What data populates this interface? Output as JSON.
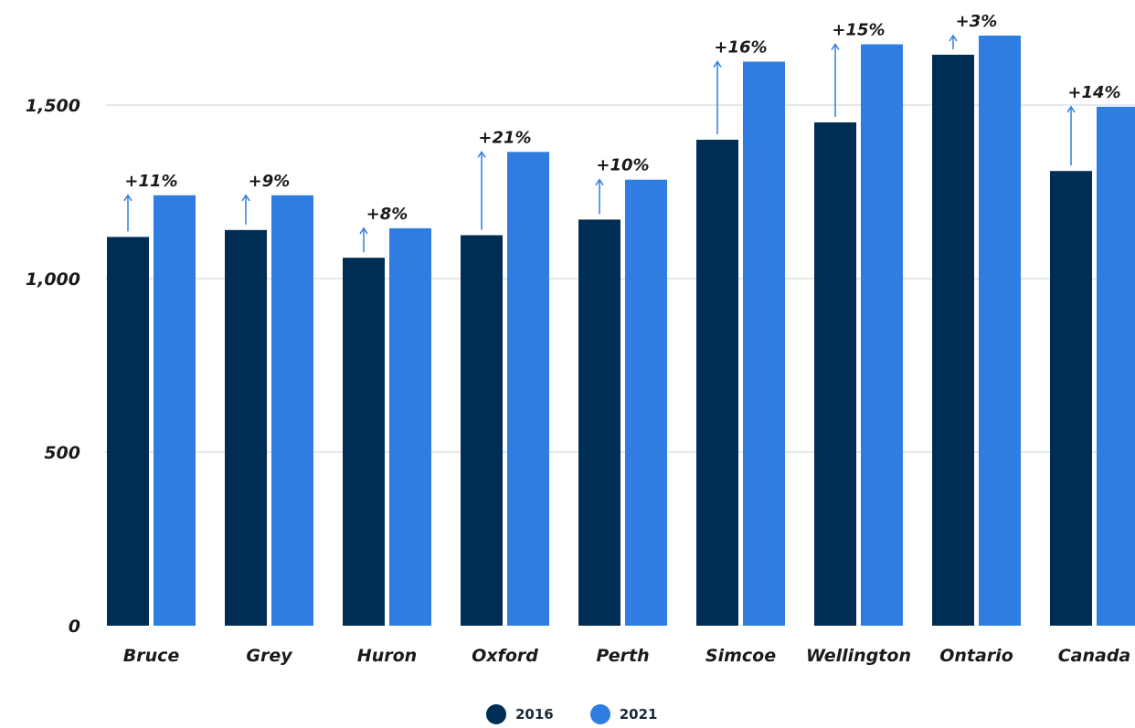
{
  "chart_data": {
    "type": "bar",
    "title": "",
    "xlabel": "",
    "ylabel": "",
    "ylim": [
      0,
      1750
    ],
    "yticks": [
      0,
      500,
      1000,
      1500
    ],
    "ytick_labels": [
      "0",
      "500",
      "1,000",
      "1,500"
    ],
    "grid": true,
    "categories": [
      "Bruce",
      "Grey",
      "Huron",
      "Oxford",
      "Perth",
      "Simcoe",
      "Wellington",
      "Ontario",
      "Canada"
    ],
    "series": [
      {
        "name": "2016",
        "color": "#002d54",
        "values": [
          1120,
          1140,
          1060,
          1125,
          1170,
          1400,
          1450,
          1645,
          1310
        ]
      },
      {
        "name": "2021",
        "color": "#2f7de1",
        "values": [
          1240,
          1240,
          1145,
          1365,
          1285,
          1625,
          1675,
          1700,
          1495
        ]
      }
    ],
    "annotations": [
      "+11%",
      "+9%",
      "+8%",
      "+21%",
      "+10%",
      "+16%",
      "+15%",
      "+3%",
      "+14%"
    ],
    "arrow_color": "#2f7de1",
    "legend_position": "bottom"
  }
}
